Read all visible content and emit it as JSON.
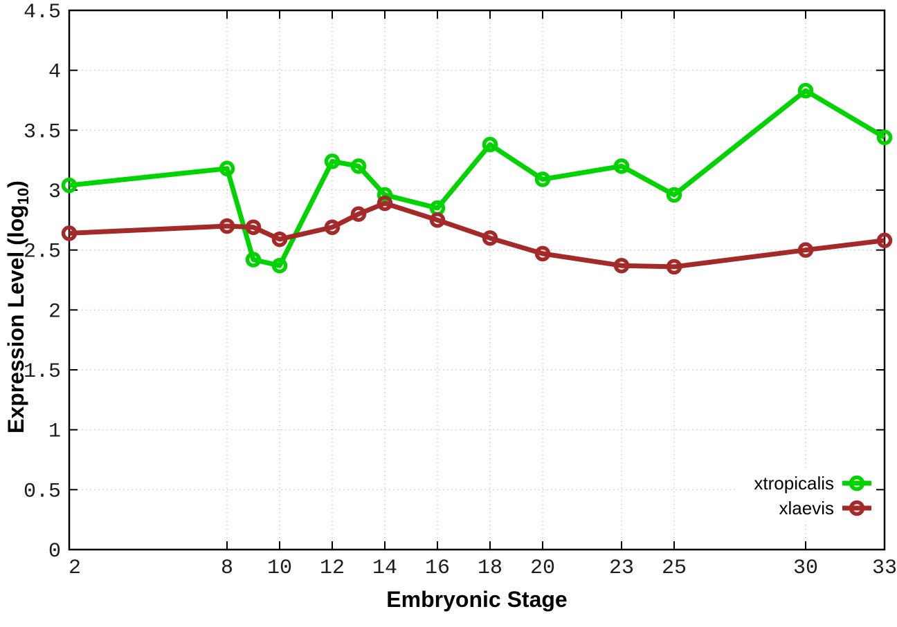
{
  "figure": {
    "background": "#ffffff"
  },
  "chart_data": {
    "type": "line",
    "title": "",
    "xlabel": "Embryonic Stage",
    "ylabel": "Expression Level (log10)",
    "ylabel_parts": {
      "prefix": "Expression Level (log",
      "sub": "10",
      "suffix": ")"
    },
    "xlim": [
      2,
      33
    ],
    "ylim": [
      0,
      4.5
    ],
    "grid": true,
    "legend_position": "inside-bottom-right",
    "x_ticks": [
      2,
      8,
      10,
      12,
      14,
      16,
      18,
      20,
      23,
      25,
      30,
      33
    ],
    "x_tick_labels": [
      "2",
      "8",
      "10",
      "12",
      "14",
      "16",
      "18",
      "20",
      "23",
      "25",
      "30",
      "33"
    ],
    "y_ticks": [
      0,
      0.5,
      1,
      1.5,
      2,
      2.5,
      3,
      3.5,
      4,
      4.5
    ],
    "y_tick_labels": [
      "0",
      "0.5",
      "1",
      "1.5",
      "2",
      "2.5",
      "3",
      "3.5",
      "4",
      "4.5"
    ],
    "x": [
      2,
      8,
      9,
      10,
      12,
      13,
      14,
      16,
      18,
      20,
      23,
      25,
      30,
      33
    ],
    "series": [
      {
        "name": "xtropicalis",
        "color": "#00d300",
        "values": [
          3.04,
          3.18,
          2.42,
          2.37,
          3.24,
          3.2,
          2.96,
          2.85,
          3.38,
          3.09,
          3.2,
          2.96,
          3.83,
          3.44
        ]
      },
      {
        "name": "xlaevis",
        "color": "#a42a2a",
        "values": [
          2.64,
          2.7,
          2.69,
          2.59,
          2.69,
          2.8,
          2.89,
          2.75,
          2.6,
          2.47,
          2.37,
          2.36,
          2.5,
          2.58
        ]
      }
    ]
  },
  "styles": {
    "grid_color": "#bdbdbd",
    "axis_color": "#000000",
    "tick_label_color": "#1c1c1c",
    "legend_text_color": "#000000"
  }
}
